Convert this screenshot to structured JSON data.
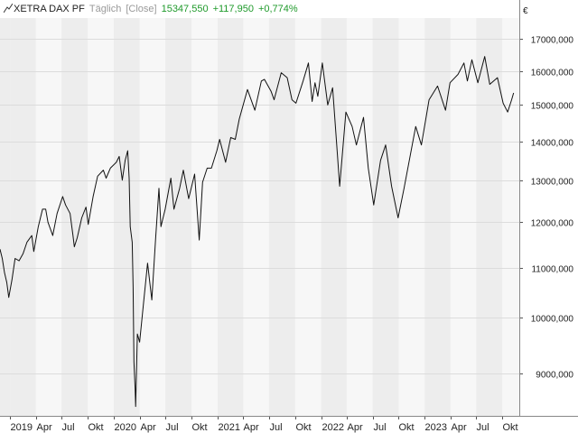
{
  "header": {
    "instrument": "XETRA DAX PF",
    "interval": "Täglich",
    "price_type": "[Close]",
    "last": "15347,550",
    "change_abs": "+117,950",
    "change_pct": "+0,774%",
    "change_color": "#1f9a2b"
  },
  "chart_data": {
    "type": "line",
    "title": "XETRA DAX PF",
    "currency_label": "€",
    "y_scale": "log",
    "ylim": [
      8300,
      17700
    ],
    "y_ticks": [
      {
        "value": 9000,
        "label": "9000,000"
      },
      {
        "value": 10000,
        "label": "10000,000"
      },
      {
        "value": 11000,
        "label": "11000,000"
      },
      {
        "value": 12000,
        "label": "12000,000"
      },
      {
        "value": 13000,
        "label": "13000,000"
      },
      {
        "value": 14000,
        "label": "14000,000"
      },
      {
        "value": 15000,
        "label": "15000,000"
      },
      {
        "value": 16000,
        "label": "16000,000"
      },
      {
        "value": 17000,
        "label": "17000,000"
      }
    ],
    "xlim": [
      "2018-11-26",
      "2023-11-30"
    ],
    "x_ticks": [
      {
        "date": "2019-01-01",
        "label": "2019"
      },
      {
        "date": "2019-04-01",
        "label": "Apr"
      },
      {
        "date": "2019-07-01",
        "label": "Jul"
      },
      {
        "date": "2019-10-01",
        "label": "Okt"
      },
      {
        "date": "2020-01-01",
        "label": "2020"
      },
      {
        "date": "2020-04-01",
        "label": "Apr"
      },
      {
        "date": "2020-07-01",
        "label": "Jul"
      },
      {
        "date": "2020-10-01",
        "label": "Okt"
      },
      {
        "date": "2021-01-01",
        "label": "2021"
      },
      {
        "date": "2021-04-01",
        "label": "Apr"
      },
      {
        "date": "2021-07-01",
        "label": "Jul"
      },
      {
        "date": "2021-10-01",
        "label": "Okt"
      },
      {
        "date": "2022-01-01",
        "label": "2022"
      },
      {
        "date": "2022-04-01",
        "label": "Apr"
      },
      {
        "date": "2022-07-01",
        "label": "Jul"
      },
      {
        "date": "2022-10-01",
        "label": "Okt"
      },
      {
        "date": "2023-01-01",
        "label": "2023"
      },
      {
        "date": "2023-04-01",
        "label": "Apr"
      },
      {
        "date": "2023-07-01",
        "label": "Jul"
      },
      {
        "date": "2023-10-01",
        "label": "Okt"
      }
    ],
    "grid": true,
    "series": [
      {
        "name": "XETRA DAX PF",
        "color": "#111111",
        "points": [
          [
            "2018-11-26",
            11400
          ],
          [
            "2018-12-04",
            11200
          ],
          [
            "2018-12-12",
            10900
          ],
          [
            "2018-12-20",
            10700
          ],
          [
            "2018-12-27",
            10400
          ],
          [
            "2019-01-07",
            10750
          ],
          [
            "2019-01-18",
            11200
          ],
          [
            "2019-02-01",
            11150
          ],
          [
            "2019-02-15",
            11300
          ],
          [
            "2019-03-01",
            11550
          ],
          [
            "2019-03-18",
            11700
          ],
          [
            "2019-03-25",
            11350
          ],
          [
            "2019-04-10",
            11900
          ],
          [
            "2019-04-25",
            12300
          ],
          [
            "2019-05-06",
            12300
          ],
          [
            "2019-05-14",
            12000
          ],
          [
            "2019-05-31",
            11700
          ],
          [
            "2019-06-15",
            12200
          ],
          [
            "2019-07-05",
            12600
          ],
          [
            "2019-07-15",
            12400
          ],
          [
            "2019-07-31",
            12200
          ],
          [
            "2019-08-10",
            11700
          ],
          [
            "2019-08-15",
            11450
          ],
          [
            "2019-08-25",
            11650
          ],
          [
            "2019-09-10",
            12100
          ],
          [
            "2019-09-25",
            12350
          ],
          [
            "2019-10-03",
            11950
          ],
          [
            "2019-10-20",
            12600
          ],
          [
            "2019-11-05",
            13100
          ],
          [
            "2019-11-25",
            13250
          ],
          [
            "2019-12-05",
            13050
          ],
          [
            "2019-12-20",
            13300
          ],
          [
            "2020-01-10",
            13450
          ],
          [
            "2020-01-20",
            13600
          ],
          [
            "2020-01-31",
            13000
          ],
          [
            "2020-02-10",
            13500
          ],
          [
            "2020-02-19",
            13750
          ],
          [
            "2020-02-24",
            13050
          ],
          [
            "2020-02-28",
            11900
          ],
          [
            "2020-03-06",
            11550
          ],
          [
            "2020-03-09",
            10600
          ],
          [
            "2020-03-12",
            9200
          ],
          [
            "2020-03-16",
            8750
          ],
          [
            "2020-03-18",
            8450
          ],
          [
            "2020-03-24",
            9700
          ],
          [
            "2020-04-01",
            9550
          ],
          [
            "2020-04-15",
            10300
          ],
          [
            "2020-04-29",
            11100
          ],
          [
            "2020-05-14",
            10350
          ],
          [
            "2020-05-27",
            11600
          ],
          [
            "2020-06-08",
            12800
          ],
          [
            "2020-06-15",
            11900
          ],
          [
            "2020-06-30",
            12300
          ],
          [
            "2020-07-20",
            13050
          ],
          [
            "2020-07-31",
            12300
          ],
          [
            "2020-08-20",
            12800
          ],
          [
            "2020-09-02",
            13250
          ],
          [
            "2020-09-21",
            12550
          ],
          [
            "2020-10-12",
            13150
          ],
          [
            "2020-10-28",
            11600
          ],
          [
            "2020-11-09",
            12950
          ],
          [
            "2020-11-25",
            13300
          ],
          [
            "2020-12-10",
            13300
          ],
          [
            "2020-12-29",
            13750
          ],
          [
            "2021-01-08",
            14050
          ],
          [
            "2021-01-29",
            13450
          ],
          [
            "2021-02-16",
            14100
          ],
          [
            "2021-03-04",
            14050
          ],
          [
            "2021-03-18",
            14600
          ],
          [
            "2021-04-16",
            15450
          ],
          [
            "2021-05-12",
            14850
          ],
          [
            "2021-06-04",
            15700
          ],
          [
            "2021-06-15",
            15750
          ],
          [
            "2021-07-08",
            15400
          ],
          [
            "2021-07-19",
            15150
          ],
          [
            "2021-08-13",
            15950
          ],
          [
            "2021-09-03",
            15800
          ],
          [
            "2021-09-20",
            15150
          ],
          [
            "2021-10-04",
            15050
          ],
          [
            "2021-10-29",
            15700
          ],
          [
            "2021-11-17",
            16250
          ],
          [
            "2021-11-30",
            15100
          ],
          [
            "2021-12-10",
            15650
          ],
          [
            "2021-12-20",
            15250
          ],
          [
            "2022-01-05",
            16250
          ],
          [
            "2022-01-24",
            15000
          ],
          [
            "2022-02-10",
            15500
          ],
          [
            "2022-02-24",
            13950
          ],
          [
            "2022-03-07",
            12850
          ],
          [
            "2022-03-29",
            14800
          ],
          [
            "2022-04-20",
            14400
          ],
          [
            "2022-05-05",
            13900
          ],
          [
            "2022-05-30",
            14650
          ],
          [
            "2022-06-16",
            13300
          ],
          [
            "2022-07-05",
            12400
          ],
          [
            "2022-07-29",
            13500
          ],
          [
            "2022-08-16",
            13900
          ],
          [
            "2022-09-06",
            12850
          ],
          [
            "2022-09-29",
            12100
          ],
          [
            "2022-10-20",
            12800
          ],
          [
            "2022-11-30",
            14400
          ],
          [
            "2022-12-20",
            13900
          ],
          [
            "2023-01-16",
            15150
          ],
          [
            "2023-02-15",
            15550
          ],
          [
            "2023-03-15",
            14850
          ],
          [
            "2023-03-31",
            15650
          ],
          [
            "2023-04-28",
            15900
          ],
          [
            "2023-05-19",
            16250
          ],
          [
            "2023-05-31",
            15700
          ],
          [
            "2023-06-16",
            16350
          ],
          [
            "2023-07-07",
            15650
          ],
          [
            "2023-07-31",
            16450
          ],
          [
            "2023-08-18",
            15600
          ],
          [
            "2023-09-14",
            15800
          ],
          [
            "2023-10-04",
            15050
          ],
          [
            "2023-10-20",
            14800
          ],
          [
            "2023-11-03",
            15150
          ],
          [
            "2023-11-10",
            15350
          ]
        ]
      }
    ]
  }
}
